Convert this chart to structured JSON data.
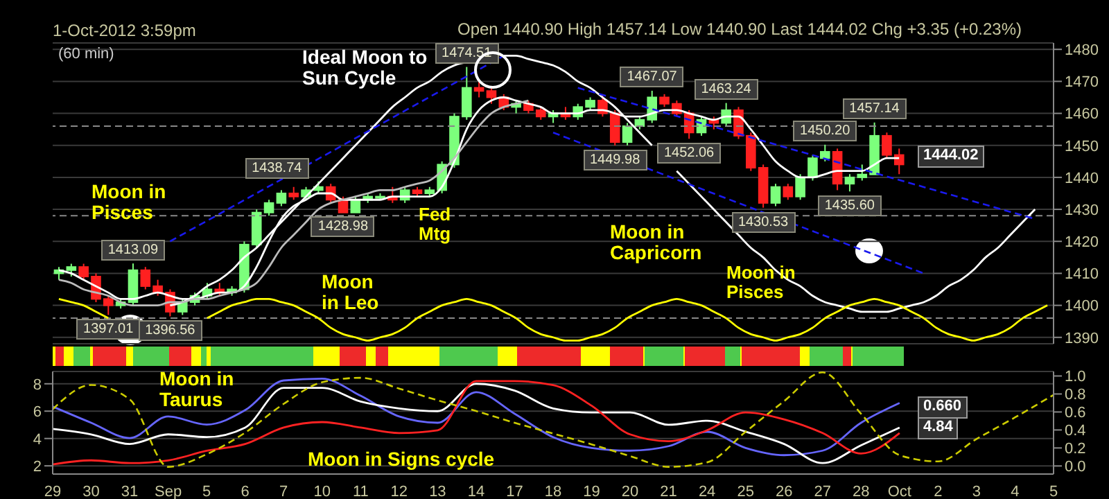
{
  "chart_data": [
    {
      "type": "candlestick",
      "subtitle": "1-Oct-2012 3:59pm",
      "categories": [
        null,
        null,
        null,
        null,
        null,
        null,
        null,
        null,
        null,
        null,
        null,
        null,
        null,
        null,
        null,
        null,
        null,
        null,
        null,
        null,
        null,
        null,
        null,
        null,
        null,
        null,
        null,
        null,
        null,
        null,
        null,
        null,
        null,
        null,
        null,
        null,
        null,
        null,
        null,
        null,
        null,
        null,
        null,
        null,
        null,
        null,
        null,
        null,
        null,
        null,
        null,
        null,
        null,
        null,
        null,
        null,
        null,
        null,
        null,
        null,
        null,
        null,
        null,
        null,
        null,
        null,
        null,
        null,
        null,
        null,
        null,
        null,
        null,
        null,
        null,
        null,
        null,
        null,
        null,
        null,
        null
      ],
      "ohlc": [
        [
          1410,
          1412,
          1408,
          1411
        ],
        [
          1411,
          1413,
          1409,
          1412
        ],
        [
          1412,
          1413,
          1408,
          1409
        ],
        [
          1409,
          1410,
          1401,
          1402
        ],
        [
          1402,
          1403,
          1397.01,
          1400
        ],
        [
          1400,
          1402,
          1399,
          1401
        ],
        [
          1401,
          1413.09,
          1400,
          1411
        ],
        [
          1411,
          1412,
          1405,
          1406
        ],
        [
          1406,
          1408,
          1403,
          1404
        ],
        [
          1404,
          1405,
          1396.56,
          1398
        ],
        [
          1398,
          1402,
          1397,
          1401
        ],
        [
          1401,
          1404,
          1400,
          1403
        ],
        [
          1403,
          1407,
          1402,
          1405
        ],
        [
          1405,
          1407,
          1403,
          1404
        ],
        [
          1404,
          1406,
          1403,
          1405
        ],
        [
          1405,
          1420,
          1404,
          1419
        ],
        [
          1419,
          1430,
          1418,
          1429
        ],
        [
          1429,
          1433,
          1428,
          1432
        ],
        [
          1432,
          1436,
          1431,
          1435
        ],
        [
          1435,
          1437,
          1433,
          1434
        ],
        [
          1434,
          1437,
          1433,
          1436
        ],
        [
          1436,
          1438.74,
          1435,
          1437
        ],
        [
          1437,
          1438,
          1432,
          1433
        ],
        [
          1433,
          1434,
          1428.98,
          1429
        ],
        [
          1429,
          1434,
          1429,
          1433
        ],
        [
          1433,
          1435,
          1432,
          1434
        ],
        [
          1434,
          1435,
          1433,
          1434
        ],
        [
          1434,
          1437,
          1432,
          1433
        ],
        [
          1433,
          1437,
          1432,
          1436
        ],
        [
          1436,
          1437,
          1434,
          1435
        ],
        [
          1435,
          1437,
          1434,
          1436
        ],
        [
          1436,
          1445,
          1435,
          1444
        ],
        [
          1444,
          1460,
          1443,
          1459
        ],
        [
          1459,
          1474.51,
          1458,
          1468
        ],
        [
          1468,
          1470,
          1465,
          1467
        ],
        [
          1467,
          1468,
          1463,
          1465
        ],
        [
          1465,
          1466,
          1461,
          1462
        ],
        [
          1462,
          1464,
          1460,
          1463
        ],
        [
          1463,
          1464,
          1460,
          1461
        ],
        [
          1461,
          1462,
          1458,
          1459
        ],
        [
          1459,
          1461,
          1457,
          1460
        ],
        [
          1460,
          1462,
          1458,
          1459
        ],
        [
          1459,
          1463,
          1458,
          1462
        ],
        [
          1462,
          1465,
          1461,
          1464
        ],
        [
          1464,
          1466,
          1459,
          1460
        ],
        [
          1460,
          1461,
          1449.98,
          1451
        ],
        [
          1451,
          1457,
          1450,
          1456
        ],
        [
          1456,
          1459,
          1455,
          1458
        ],
        [
          1458,
          1467.07,
          1457,
          1465
        ],
        [
          1465,
          1466,
          1462,
          1463
        ],
        [
          1463,
          1464,
          1459,
          1460
        ],
        [
          1460,
          1461,
          1452.06,
          1454
        ],
        [
          1454,
          1459,
          1453,
          1458
        ],
        [
          1458,
          1459,
          1455,
          1457
        ],
        [
          1457,
          1463.24,
          1456,
          1461
        ],
        [
          1461,
          1462,
          1452,
          1453
        ],
        [
          1453,
          1454,
          1442,
          1443
        ],
        [
          1443,
          1444,
          1430.53,
          1432
        ],
        [
          1432,
          1438,
          1431,
          1437
        ],
        [
          1437,
          1438,
          1433,
          1434
        ],
        [
          1434,
          1441,
          1433,
          1440
        ],
        [
          1440,
          1447,
          1439,
          1446
        ],
        [
          1446,
          1450.2,
          1445,
          1448
        ],
        [
          1448,
          1449,
          1436,
          1438
        ],
        [
          1438,
          1441,
          1435.6,
          1440
        ],
        [
          1440,
          1444,
          1439,
          1440.9
        ],
        [
          1440.9,
          1457.14,
          1440.9,
          1453
        ],
        [
          1453,
          1454,
          1446,
          1447
        ],
        [
          1447,
          1449,
          1441,
          1444.02
        ],
        null,
        null,
        null,
        null,
        null,
        null,
        null,
        null,
        null,
        null,
        null,
        null
      ],
      "series": [
        {
          "type": "line",
          "color": "#ffffff",
          "values": [
            null,
            null,
            null,
            null,
            null,
            null,
            null,
            null,
            null,
            1400,
            1401,
            1403,
            1406,
            1408,
            1411,
            1415,
            1418,
            1422,
            1426,
            1430,
            1434,
            1438,
            1442,
            1446,
            1450,
            1454,
            1458,
            1462,
            1465,
            1468,
            1470,
            1473,
            1475,
            1476,
            null,
            null,
            1478,
            1478,
            1477,
            1476,
            1475,
            1473,
            1470,
            1468,
            1465,
            1462,
            1458,
            1454,
            1450,
            null,
            1442,
            1438,
            1434,
            1430,
            1426,
            1422,
            1418,
            1415,
            1411,
            1408,
            1406,
            1403,
            1401,
            1400,
            1399,
            1398,
            1398,
            1398,
            1399,
            1400,
            1401,
            1403,
            1406,
            1408,
            1411,
            1415,
            1418,
            1422,
            1426,
            1430,
            null
          ]
        },
        {
          "type": "line",
          "color": "#ffff00",
          "values": [
            1402,
            1401,
            1400,
            1398,
            1396,
            null,
            null,
            null,
            null,
            null,
            null,
            null,
            1396,
            1398,
            1400,
            1401,
            1402,
            1402,
            1401,
            1400,
            1398,
            1396,
            1393,
            1391,
            1390,
            1389,
            1390,
            1391,
            1393,
            1396,
            1398,
            1400,
            1401,
            1402,
            1401,
            1400,
            1398,
            1396,
            1393,
            1391,
            1390,
            1389,
            1389,
            1390,
            1391,
            1393,
            1396,
            1398,
            1400,
            1401,
            1402,
            1401,
            1400,
            1398,
            1396,
            1393,
            1391,
            1390,
            1389,
            1390,
            1391,
            1393,
            1396,
            1398,
            1400,
            1401,
            1402,
            1401,
            1400,
            1398,
            1396,
            1393,
            1391,
            1390,
            1389,
            1390,
            1391,
            1393,
            1396,
            1398,
            1400
          ]
        },
        {
          "type": "line",
          "color": "#ffffff",
          "values": [
            1411,
            1410,
            1408,
            1406,
            1404,
            1402,
            1402,
            1403,
            1404,
            1403,
            1402,
            1402,
            1403,
            1404,
            1404,
            1406,
            1412,
            1420,
            1427,
            1431,
            1433,
            1435,
            1435,
            1433,
            1433,
            1433,
            1433,
            1434,
            1434,
            1434,
            1434,
            1437,
            1445,
            1455,
            1461,
            1464,
            1465,
            1464,
            1463,
            1462,
            1460,
            1460,
            1460,
            1461,
            1461,
            1460,
            1459,
            1459,
            1460,
            1461,
            1461,
            1460,
            1459,
            1458,
            1459,
            1459,
            1455,
            1450,
            1445,
            1442,
            1440,
            1440,
            1441,
            1442,
            1442,
            1442,
            1444,
            1446,
            1446,
            null,
            null,
            null,
            null,
            null,
            null,
            null,
            null,
            null,
            null,
            null,
            null
          ]
        },
        {
          "type": "line",
          "color": "#bbbbbb",
          "values": [
            1408,
            1407,
            1405,
            1404,
            1403,
            1401,
            1400,
            1400,
            1400,
            1401,
            1401,
            1402,
            1402,
            1403,
            1404,
            1405,
            1407,
            1412,
            1418,
            1422,
            1426,
            1430,
            1432,
            1433,
            1434,
            1435,
            1436,
            1436,
            1437,
            1438,
            1439,
            1442,
            1446,
            1451,
            1456,
            1460,
            1462,
            1463,
            1464,
            null,
            null,
            null,
            null,
            null,
            null,
            null,
            null,
            null,
            null,
            null,
            null,
            null,
            null,
            null,
            null,
            null,
            null,
            null,
            null,
            null,
            null,
            null,
            null,
            null,
            null,
            null,
            null,
            null,
            null,
            null,
            null,
            null,
            null,
            null,
            null,
            null,
            null,
            null,
            null,
            null,
            null
          ]
        },
        {
          "type": "line",
          "color": "#1a1aee",
          "line_style": "dashed",
          "values": [
            null,
            null,
            null,
            null,
            null,
            null,
            null,
            null,
            null,
            1420,
            null,
            null,
            null,
            null,
            null,
            null,
            null,
            null,
            null,
            null,
            null,
            null,
            null,
            null,
            null,
            null,
            null,
            null,
            null,
            null,
            null,
            null,
            null,
            null,
            null,
            null,
            1478,
            null,
            null,
            null,
            null,
            null,
            null,
            null,
            null,
            null,
            null,
            null,
            null,
            null,
            null,
            null,
            null,
            null,
            null,
            null,
            null,
            null,
            null,
            null,
            null,
            null,
            null,
            null,
            null,
            null,
            null,
            null,
            null,
            null,
            null,
            null,
            null,
            null,
            null,
            null,
            null,
            null,
            null,
            null,
            null
          ]
        },
        {
          "type": "line",
          "color": "#1a1aee",
          "line_style": "dashed",
          "values": [
            null,
            null,
            null,
            null,
            null,
            null,
            null,
            null,
            null,
            null,
            null,
            null,
            null,
            null,
            null,
            null,
            null,
            null,
            null,
            null,
            null,
            null,
            null,
            null,
            null,
            null,
            null,
            null,
            null,
            null,
            null,
            null,
            null,
            null,
            null,
            null,
            null,
            null,
            null,
            null,
            null,
            null,
            1468,
            null,
            null,
            null,
            null,
            null,
            null,
            null,
            null,
            null,
            null,
            null,
            null,
            null,
            null,
            null,
            null,
            null,
            null,
            null,
            null,
            null,
            null,
            null,
            null,
            null,
            null,
            null,
            null,
            null,
            null,
            null,
            null,
            null,
            null,
            null,
            null,
            1427,
            null
          ]
        },
        {
          "type": "line",
          "color": "#1a1aee",
          "line_style": "dashed",
          "values": [
            null,
            null,
            null,
            null,
            null,
            null,
            null,
            null,
            null,
            null,
            null,
            null,
            null,
            null,
            null,
            null,
            null,
            null,
            null,
            null,
            null,
            null,
            null,
            null,
            null,
            null,
            null,
            null,
            null,
            null,
            null,
            null,
            null,
            null,
            null,
            null,
            null,
            null,
            null,
            null,
            1454,
            null,
            null,
            null,
            null,
            null,
            null,
            null,
            null,
            null,
            null,
            null,
            null,
            null,
            null,
            null,
            null,
            null,
            null,
            null,
            null,
            null,
            null,
            null,
            null,
            null,
            null,
            null,
            null,
            null,
            1410,
            null,
            null,
            null,
            null,
            null,
            null,
            null,
            null,
            null,
            null
          ]
        }
      ],
      "ylim": [
        1388,
        1482
      ],
      "yticks": [
        1390,
        1400,
        1410,
        1420,
        1430,
        1440,
        1450,
        1460,
        1470,
        1480
      ],
      "grid": "y",
      "tick_labels": "y",
      "ref_lines": [
        {
          "axis": "y",
          "value": 1456,
          "color": "#888888",
          "line_style": "dashed"
        },
        {
          "axis": "y",
          "value": 1428,
          "color": "#888888",
          "line_style": "dashed"
        },
        {
          "axis": "y",
          "value": 1396,
          "color": "#888888",
          "line_style": "dashed"
        }
      ],
      "annotations": [
        "Open 1440.90 High 1457.14 Low 1440.90 Last 1444.02 Chg +3.35 (+0.23%)",
        "(60 min)",
        "Ideal Moon to Sun Cycle",
        "Moon in Pisces",
        "Fed Mtg",
        "Moon in Leo",
        "Moon in Capricorn",
        "Moon in Pisces",
        {
          "text": "1474.51",
          "y": 1474.51
        },
        {
          "text": "1467.07",
          "y": 1467.07
        },
        {
          "text": "1463.24",
          "y": 1463.24
        },
        {
          "text": "1457.14",
          "y": 1457.14
        },
        {
          "text": "1450.20",
          "y": 1450.2
        },
        {
          "text": "1452.06",
          "y": 1452.06
        },
        {
          "text": "1449.98",
          "y": 1449.98
        },
        {
          "text": "1438.74",
          "y": 1438.74
        },
        {
          "text": "1428.98",
          "y": 1428.98
        },
        {
          "text": "1435.60",
          "y": 1435.6
        },
        {
          "text": "1430.53",
          "y": 1430.53
        },
        {
          "text": "1413.09",
          "y": 1413.09
        },
        {
          "text": "1397.01",
          "y": 1397.01
        },
        {
          "text": "1396.56",
          "y": 1396.56
        },
        "1444.02"
      ]
    },
    {
      "type": "line",
      "categories": [
        "29",
        "30",
        "31",
        "Sep",
        "5",
        "6",
        "7",
        "10",
        "11",
        "12",
        "13",
        "14",
        "17",
        "18",
        "19",
        "20",
        "21",
        "24",
        "25",
        "26",
        "27",
        "28",
        "Oct",
        "2",
        "3",
        "4",
        "5"
      ],
      "series": [
        {
          "color": "#6666ff",
          "axis": "y2",
          "values": [
            0.66,
            0.48,
            0.31,
            0.55,
            0.46,
            0.62,
            0.95,
            0.97,
            0.78,
            0.55,
            0.48,
            0.82,
            0.58,
            0.32,
            0.2,
            0.17,
            0.22,
            0.38,
            0.2,
            0.12,
            0.17,
            0.48,
            0.7,
            null,
            null,
            null,
            null
          ]
        },
        {
          "color": "#ffffff",
          "values": [
            4.7,
            4.3,
            3.6,
            4.3,
            4.1,
            4.8,
            7.7,
            7.7,
            6.7,
            6.2,
            6.0,
            8.0,
            7.5,
            6.2,
            5.9,
            5.9,
            5.0,
            5.3,
            4.5,
            3.6,
            2.2,
            3.5,
            4.8,
            null,
            null,
            null,
            null
          ]
        },
        {
          "color": "#ff2222",
          "values": [
            2.1,
            2.4,
            2.2,
            2.4,
            3.1,
            3.6,
            4.8,
            5.2,
            4.8,
            4.4,
            4.6,
            8.2,
            8.2,
            7.9,
            6.4,
            4.3,
            3.8,
            4.6,
            5.9,
            5.4,
            4.4,
            2.9,
            4.4,
            null,
            null,
            null,
            null
          ]
        },
        {
          "color": "#cccc00",
          "axis": "y2",
          "line_style": "dashed",
          "values": [
            0.63,
            0.9,
            0.74,
            -0.01,
            0.13,
            0.37,
            0.69,
            0.93,
            0.98,
            0.86,
            0.73,
            0.61,
            0.48,
            0.36,
            0.24,
            0.11,
            -0.01,
            0.04,
            0.38,
            0.72,
            1.04,
            0.58,
            0.12,
            0.05,
            0.3,
            0.54,
            0.79
          ]
        }
      ],
      "ylim": [
        1.4,
        8.9
      ],
      "yticks": [
        2,
        4,
        6,
        8
      ],
      "y2lim": [
        -0.09,
        1.05
      ],
      "y2ticks": [
        {
          "value": 0,
          "label": "0.0"
        },
        {
          "value": 0.2,
          "label": "0.2"
        },
        {
          "value": 0.4,
          "label": "0.4"
        },
        {
          "value": 0.6,
          "label": "0.6"
        },
        {
          "value": 0.8,
          "label": "0.8"
        },
        {
          "value": 1,
          "label": "1.0"
        }
      ],
      "grid": "y",
      "annotations": [
        "Moon in Taurus",
        "Moon in Signs cycle",
        "0.660",
        "4.84"
      ]
    }
  ]
}
